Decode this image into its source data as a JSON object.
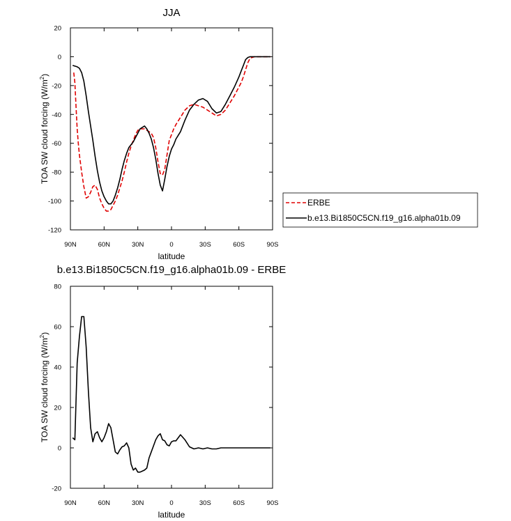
{
  "chart_data": [
    {
      "type": "line",
      "title": "JJA",
      "xlabel": "latitude",
      "ylabel_main": "TOA SW cloud forcing (W/m",
      "ylabel_sup": "2",
      "ylabel_end": ")",
      "xlim": [
        90,
        -90
      ],
      "ylim": [
        -120,
        20
      ],
      "x_ticks": [
        90,
        60,
        30,
        0,
        -30,
        -60,
        -90
      ],
      "x_tick_labels": [
        "90N",
        "60N",
        "30N",
        "0",
        "30S",
        "60S",
        "90S"
      ],
      "y_ticks": [
        -120,
        -100,
        -80,
        -60,
        -40,
        -20,
        0,
        20
      ],
      "y_tick_labels": [
        "-120",
        "-100",
        "-80",
        "-60",
        "-40",
        "-20",
        "0",
        "20"
      ],
      "legend_position": "right",
      "series": [
        {
          "name": "ERBE",
          "color": "#e00000",
          "dashed": true,
          "x": [
            87,
            86,
            85,
            84,
            83,
            82,
            80,
            78,
            76,
            74,
            72,
            70,
            68,
            66,
            64,
            62,
            60,
            58,
            56,
            54,
            52,
            50,
            48,
            46,
            44,
            42,
            40,
            38,
            36,
            34,
            32,
            30,
            28,
            26,
            24,
            22,
            20,
            18,
            16,
            14,
            12,
            10,
            8,
            6,
            4,
            2,
            0,
            -2,
            -4,
            -8,
            -12,
            -16,
            -20,
            -24,
            -28,
            -32,
            -36,
            -40,
            -44,
            -48,
            -52,
            -56,
            -60,
            -62,
            -64,
            -66,
            -68,
            -70,
            -74,
            -78,
            -82,
            -86,
            -88
          ],
          "y": [
            -11,
            -18,
            -35,
            -50,
            -60,
            -68,
            -80,
            -90,
            -98,
            -97,
            -94,
            -90,
            -89,
            -92,
            -98,
            -102,
            -105,
            -107,
            -107,
            -106,
            -103,
            -100,
            -96,
            -91,
            -86,
            -80,
            -73,
            -67,
            -62,
            -58,
            -54,
            -51,
            -50,
            -50,
            -50,
            -51,
            -52,
            -53,
            -56,
            -63,
            -73,
            -81,
            -82,
            -78,
            -68,
            -58,
            -54,
            -50,
            -47,
            -42,
            -37,
            -34,
            -33,
            -34,
            -35,
            -37,
            -39,
            -41,
            -40,
            -37,
            -32,
            -27,
            -21,
            -18,
            -14,
            -9,
            -4,
            -1,
            0,
            0,
            0,
            0,
            0
          ]
        },
        {
          "name": "b.e13.Bi1850C5CN.f19_g16.alpha01b.09",
          "color": "#000000",
          "dashed": false,
          "x": [
            88,
            86,
            84,
            82,
            80,
            78,
            76,
            74,
            72,
            70,
            68,
            66,
            64,
            62,
            60,
            58,
            56,
            54,
            52,
            50,
            48,
            46,
            44,
            42,
            40,
            38,
            36,
            34,
            32,
            30,
            28,
            26,
            24,
            22,
            20,
            18,
            16,
            14,
            12,
            10,
            8,
            6,
            4,
            2,
            0,
            -2,
            -4,
            -8,
            -12,
            -16,
            -20,
            -24,
            -28,
            -32,
            -36,
            -40,
            -44,
            -48,
            -52,
            -56,
            -60,
            -62,
            -64,
            -66,
            -68,
            -70,
            -74,
            -78,
            -82,
            -86,
            -88
          ],
          "y": [
            -6,
            -6.5,
            -7,
            -8,
            -11,
            -17,
            -27,
            -38,
            -48,
            -58,
            -69,
            -79,
            -87,
            -93,
            -97,
            -100,
            -102,
            -102,
            -100,
            -96,
            -91,
            -85,
            -78,
            -72,
            -67,
            -63,
            -61,
            -59,
            -56,
            -53,
            -50,
            -49,
            -48,
            -50,
            -53,
            -57,
            -63,
            -71,
            -81,
            -89,
            -93,
            -85,
            -76,
            -69,
            -64,
            -61,
            -57,
            -52,
            -44,
            -37,
            -33,
            -30,
            -29,
            -31,
            -36,
            -39,
            -38,
            -33,
            -27,
            -21,
            -14,
            -10,
            -6,
            -2,
            -0.5,
            0,
            0,
            0,
            0,
            0,
            0
          ]
        }
      ]
    },
    {
      "type": "line",
      "title": "b.e13.Bi1850C5CN.f19_g16.alpha01b.09 - ERBE",
      "xlabel": "latitude",
      "ylabel_main": "TOA SW cloud forcing (W/m",
      "ylabel_sup": "2",
      "ylabel_end": ")",
      "xlim": [
        90,
        -90
      ],
      "ylim": [
        -20,
        80
      ],
      "x_ticks": [
        90,
        60,
        30,
        0,
        -30,
        -60,
        -90
      ],
      "x_tick_labels": [
        "90N",
        "60N",
        "30N",
        "0",
        "30S",
        "60S",
        "90S"
      ],
      "y_ticks": [
        -20,
        0,
        20,
        40,
        60,
        80
      ],
      "y_tick_labels": [
        "-20",
        "0",
        "20",
        "40",
        "60",
        "80"
      ],
      "series": [
        {
          "color": "#000000",
          "dashed": false,
          "x": [
            88,
            86,
            84,
            82,
            80,
            78,
            76,
            74,
            72,
            70,
            68,
            66,
            64,
            62,
            60,
            58,
            56,
            54,
            52,
            50,
            48,
            46,
            44,
            42,
            40,
            38,
            36,
            34,
            32,
            30,
            28,
            26,
            24,
            22,
            20,
            18,
            16,
            14,
            12,
            10,
            8,
            6,
            4,
            2,
            0,
            -2,
            -4,
            -8,
            -12,
            -16,
            -20,
            -24,
            -28,
            -32,
            -36,
            -40,
            -44,
            -48,
            -52,
            -56,
            -60,
            -62,
            -64,
            -66,
            -68,
            -70,
            -74,
            -78,
            -82,
            -86,
            -88
          ],
          "y": [
            5,
            4,
            42,
            55,
            65,
            65,
            50,
            28,
            10,
            3,
            7,
            8,
            5,
            3,
            5,
            8,
            12,
            10,
            4,
            -2,
            -3,
            -1,
            0.5,
            1,
            2.5,
            0,
            -8,
            -11,
            -10,
            -12,
            -12,
            -11.5,
            -11,
            -10,
            -5,
            -2,
            1,
            4,
            6,
            7,
            4,
            3.5,
            1.5,
            1,
            3,
            3.5,
            3.5,
            6.5,
            4,
            0.5,
            -0.5,
            0,
            -0.5,
            0,
            -0.5,
            -0.5,
            0,
            0,
            0,
            0,
            0,
            0,
            0,
            0,
            0,
            0,
            0,
            0,
            0,
            0,
            0
          ]
        }
      ]
    }
  ]
}
